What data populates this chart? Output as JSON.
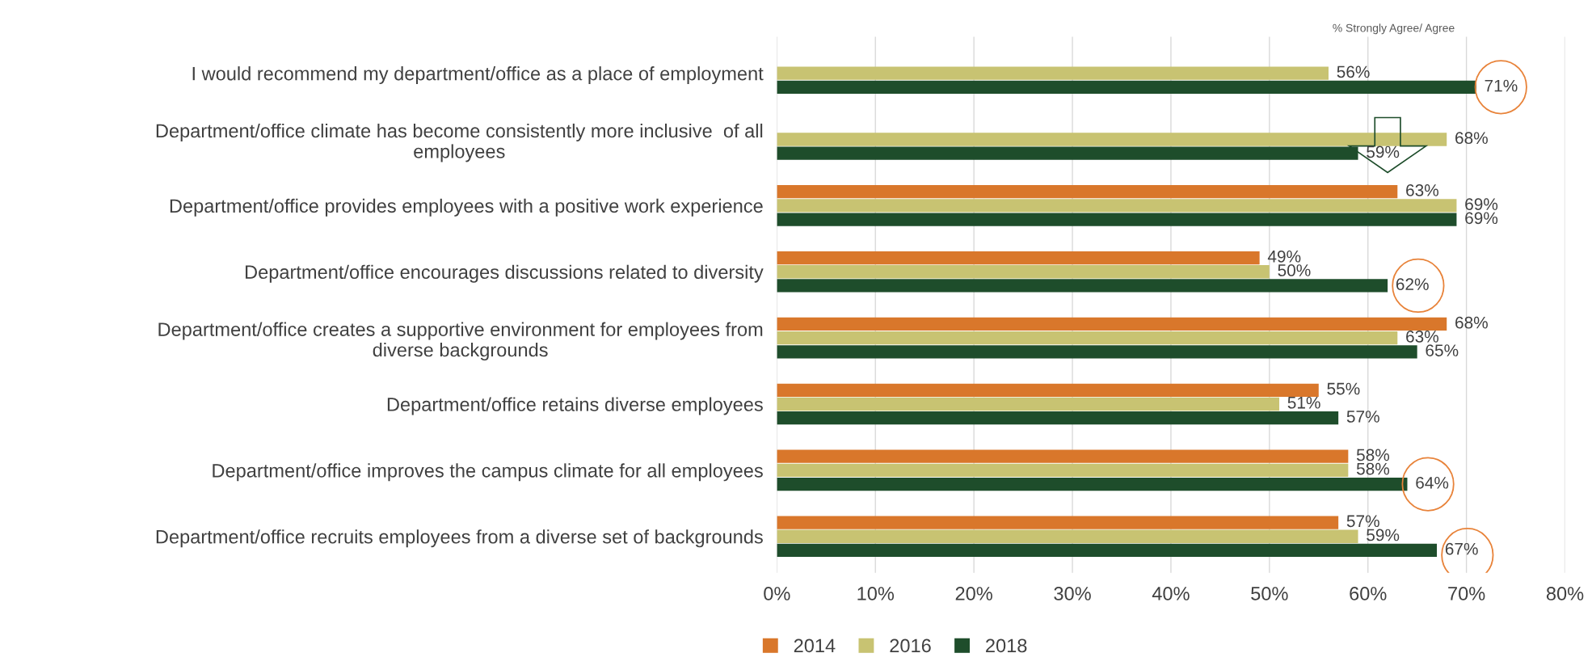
{
  "chart_data": {
    "type": "bar",
    "orientation": "horizontal",
    "categories": [
      "I would recommend my department/office as a place of employment",
      "Department/office climate has become consistently more inclusive  of all\nemployees",
      "Department/office provides employees with a positive work experience",
      "Department/office encourages discussions related to diversity",
      "Department/office creates a supportive environment for employees from\ndiverse backgrounds",
      "Department/office retains diverse employees",
      "Department/office improves the campus climate for all employees",
      "Department/office recruits employees from a diverse set of backgrounds"
    ],
    "series": [
      {
        "name": "2014",
        "color": "#d9772b",
        "values": [
          null,
          null,
          63,
          49,
          68,
          55,
          58,
          57
        ],
        "value_labels": [
          null,
          null,
          "63%",
          "49%",
          "68%",
          "55%",
          "58%",
          "57%"
        ]
      },
      {
        "name": "2016",
        "color": "#c8c372",
        "values": [
          56,
          68,
          69,
          50,
          63,
          51,
          58,
          59
        ],
        "value_labels": [
          "56%",
          "68%",
          "69%",
          "50%",
          "63%",
          "51%",
          "58%",
          "59%"
        ]
      },
      {
        "name": "2018",
        "color": "#1e4d2b",
        "values": [
          71,
          59,
          69,
          62,
          65,
          57,
          64,
          67
        ],
        "value_labels": [
          "71%",
          "59%",
          "69%",
          "62%",
          "65%",
          "57%",
          "64%",
          "67%"
        ]
      }
    ],
    "xlim": [
      0,
      80
    ],
    "xticks": [
      {
        "value": 0,
        "label": "0%"
      },
      {
        "value": 10,
        "label": "10%"
      },
      {
        "value": 20,
        "label": "20%"
      },
      {
        "value": 30,
        "label": "30%"
      },
      {
        "value": 40,
        "label": "40%"
      },
      {
        "value": 50,
        "label": "50%"
      },
      {
        "value": 60,
        "label": "60%"
      },
      {
        "value": 70,
        "label": "70%"
      },
      {
        "value": 80,
        "label": "80%"
      }
    ],
    "grid": "x",
    "legend": "bottom",
    "annotations": [
      "% Strongly Agree/ Agree"
    ]
  }
}
